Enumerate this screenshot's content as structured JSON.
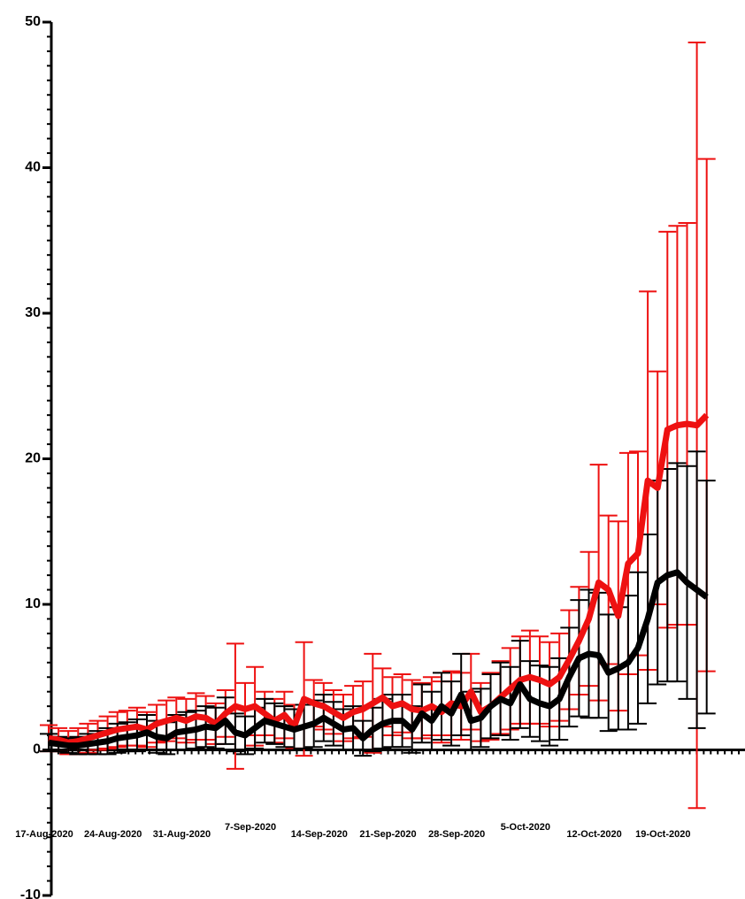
{
  "chart_data": {
    "type": "line",
    "categories": [
      "17-Aug-2020",
      null,
      null,
      null,
      null,
      null,
      null,
      "24-Aug-2020",
      null,
      null,
      null,
      null,
      null,
      null,
      "31-Aug-2020",
      null,
      null,
      null,
      null,
      null,
      null,
      "7-Sep-2020",
      null,
      null,
      null,
      null,
      null,
      null,
      "14-Sep-2020",
      null,
      null,
      null,
      null,
      null,
      null,
      "21-Sep-2020",
      null,
      null,
      null,
      null,
      null,
      null,
      "28-Sep-2020",
      null,
      null,
      null,
      null,
      null,
      null,
      "5-Oct-2020",
      null,
      null,
      null,
      null,
      null,
      null,
      "12-Oct-2020",
      null,
      null,
      null,
      null,
      null,
      null,
      "19-Oct-2020",
      null,
      null,
      null,
      null
    ],
    "ylim": [
      -10,
      50
    ],
    "yticks": [
      -10,
      0,
      10,
      20,
      30,
      40,
      50
    ],
    "series": [
      {
        "color": "#ee1111",
        "values": [
          0.8,
          0.7,
          0.5,
          0.6,
          0.8,
          1.0,
          1.2,
          1.4,
          1.5,
          1.6,
          1.4,
          1.8,
          2.0,
          2.2,
          2.0,
          2.3,
          2.2,
          1.8,
          2.5,
          3.0,
          2.8,
          3.0,
          2.5,
          2.0,
          2.4,
          1.6,
          3.5,
          3.2,
          3.0,
          2.6,
          2.2,
          2.6,
          2.8,
          3.2,
          3.6,
          3.0,
          3.2,
          2.8,
          2.7,
          3.0,
          2.6,
          3.2,
          3.0,
          4.0,
          2.6,
          3.0,
          3.6,
          4.2,
          4.8,
          5.0,
          4.8,
          4.5,
          5.0,
          6.2,
          7.5,
          9.0,
          11.5,
          11.0,
          9.2,
          12.8,
          13.5,
          18.5,
          18.0,
          22.0,
          22.3,
          22.4,
          22.3,
          23.0
        ],
        "errors": [
          0.9,
          0.8,
          0.8,
          0.9,
          1.0,
          1.0,
          1.1,
          1.2,
          1.2,
          1.3,
          1.2,
          1.3,
          1.4,
          1.4,
          1.5,
          1.6,
          1.5,
          1.4,
          1.6,
          4.3,
          1.8,
          2.7,
          1.5,
          1.5,
          1.6,
          1.5,
          3.9,
          1.6,
          1.6,
          1.5,
          1.6,
          1.8,
          1.9,
          3.4,
          2.0,
          2.0,
          2.0,
          2.0,
          1.9,
          2.0,
          2.1,
          2.2,
          2.3,
          2.6,
          2.0,
          2.3,
          2.5,
          2.8,
          3.0,
          3.2,
          3.0,
          2.9,
          3.0,
          3.4,
          3.7,
          4.6,
          8.1,
          5.1,
          6.5,
          7.6,
          7.0,
          13.0,
          8.0,
          13.6,
          13.7,
          13.8,
          26.3,
          17.6
        ]
      },
      {
        "color": "#000000",
        "values": [
          0.5,
          0.4,
          0.3,
          0.3,
          0.4,
          0.5,
          0.6,
          0.8,
          0.9,
          1.0,
          1.2,
          0.9,
          0.8,
          1.2,
          1.3,
          1.4,
          1.6,
          1.5,
          2.0,
          1.2,
          1.0,
          1.5,
          2.0,
          1.8,
          1.6,
          1.4,
          1.6,
          1.8,
          2.2,
          1.8,
          1.4,
          1.5,
          0.8,
          1.4,
          1.8,
          2.0,
          2.0,
          1.4,
          2.5,
          2.0,
          3.0,
          2.5,
          3.8,
          2.0,
          2.2,
          3.0,
          3.5,
          3.2,
          4.5,
          3.5,
          3.2,
          3.0,
          3.5,
          5.0,
          6.3,
          6.6,
          6.5,
          5.3,
          5.6,
          6.0,
          7.0,
          9.0,
          11.5,
          12.0,
          12.2,
          11.5,
          11.0,
          10.5
        ],
        "errors": [
          0.6,
          0.5,
          0.5,
          0.6,
          0.7,
          0.8,
          0.9,
          1.0,
          1.0,
          1.1,
          1.2,
          1.1,
          1.1,
          1.2,
          1.3,
          1.3,
          1.4,
          1.4,
          1.6,
          1.3,
          1.3,
          1.4,
          1.5,
          1.4,
          1.4,
          1.4,
          1.5,
          1.6,
          1.6,
          1.5,
          1.4,
          1.5,
          1.2,
          1.5,
          1.7,
          1.8,
          1.8,
          1.6,
          2.0,
          2.0,
          2.3,
          2.2,
          2.8,
          2.0,
          2.0,
          2.2,
          2.5,
          2.5,
          3.0,
          2.6,
          2.6,
          2.7,
          2.8,
          3.4,
          4.0,
          4.4,
          4.3,
          4.0,
          4.2,
          4.6,
          5.2,
          5.8,
          7.0,
          7.3,
          7.5,
          8.0,
          9.5,
          8.0
        ]
      }
    ]
  }
}
